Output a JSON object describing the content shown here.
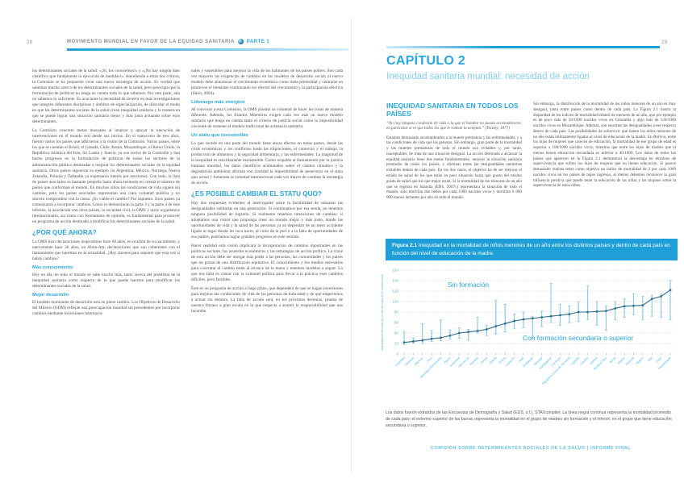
{
  "colors": {
    "accent_blue": "#29a8e0",
    "banner_blue": "#1e9fd8",
    "mean_line": "#2e6e8e",
    "error_bar": "#8fc9e6",
    "grid": "#c9c9c9",
    "tick_label": "#5ab9e8"
  },
  "left_page": {
    "page_number": "28",
    "header": {
      "title": "MOVIMIENTO MUNDIAL EN FAVOR DE LA EQUIDAD SANITARIA",
      "part": "PARTE 1"
    },
    "col1": [
      {
        "type": "p",
        "text": "los determinantes sociales de la salud: «¡Sí, los conocemos!» y «¡No hay ningún dato científico que fundamente la ejecución de medidas!». Atendiendo a estas dos críticas, la Comisión se ha propuesto crear una nueva estrategia de acción. Es verdad que sabemos mucho acerca de los determinantes sociales de la salud, pero preocupa que la formulación de políticas no tenga en cuenta todo lo que sabemos. Por otra parte, aún no sabemos lo suficiente. Es acuciante la necesidad de invertir en más investigaciones que integren diferentes disciplinas y ámbitos de especialización, de dilucidar el modo en que los determinantes sociales de la salud crean inequidad sanitaria y la manera en que se puede lograr una situación sanitaria mejor y más justa actuando sobre esos determinantes."
      },
      {
        "type": "p",
        "text": "La Comisión concretó metas inusuales al inspirar y apoyar la ejecución de intervenciones en el mundo real desde sus inicios. En el transcurso de tres años, fueron varios los países que adhirieron a la visión de la Comisión. Varios países, entre los que se cuentan el Brasil, el Canadá, Chile, Kenia, Mozambique, el Reino Unido, la República Islámica del Irán, Sri Lanka y Suecia, ya son socios de la Comisión y han hecho progresos en la formulación de políticas de todos los sectores de la administración pública destinadas a mejorar los determinantes sociales de la equidad sanitaria. Otros países siguieron su ejemplo (la Argentina, México, Noruega, Nueva Zelandia, Polonia y Tailandia ya expresaron interés por asociarse). Con todo, la lista de países asociados es bastante pequeña hasta ahora teniendo en cuenta el número de países que conforman el mundo. En muchos sitios las condiciones de vida siguen sin cambiar, pero los países asociados representan una clara voluntad política y un sincero compromiso con la causa. ¿Es viable el cambio? Por supuesto. Esos países ya comenzaron a incorporar cambios. Como lo demostrarán la parte 3 y la parte 4 de este informe, la asociación con otros países, la sociedad civil, la OMS y otros organismos internacionales, así como con formadores de opinión, es fundamental para promover un programa de acción destinado a modificar los determinantes sociales de la salud."
      },
      {
        "type": "h1",
        "text": "¿POR QUÉ AHORA?"
      },
      {
        "type": "p",
        "text": "La OMS hizo declaraciones inspiradoras hace 60 años, en ocasión de su nacimiento, y nuevamente hace 30 años, en Alma-Ata; declaraciones que son coherentes con el llamamiento que hacemos en la actualidad. ¿Hay razones para suponer que esta vez sí habrá cambios?"
      },
      {
        "type": "h2",
        "text": "Más conocimiento"
      },
      {
        "type": "p",
        "text": "Hoy en día, en todo el mundo se sabe mucho más, tanto acerca del problema de la inequidad sanitaria como respecto de lo que puede hacerse para modificar los determinantes sociales de la salud."
      },
      {
        "type": "h2",
        "text": "Mejor desarrollo"
      },
      {
        "type": "p",
        "text": "El modelo dominante de desarrollo está en pleno cambio. Los Objetivos de Desarrollo del Milenio (ODM) reflejan una preocupación mundial sin precedentes por incorporar cambios mediante inversiones internacio-"
      }
    ],
    "col2": [
      {
        "type": "p",
        "text": "nales y sostenibles para mejorar la vida de los habitantes de los países pobres. Son cada vez mayores las exigencias de cambios en los modelos de desarrollo social; el nuevo modelo debe abandonar el crecimiento económico como meta primordial y centrarse en promover el bienestar combinando los efectos del crecimiento y la participación efectiva (Stern, 2004)."
      },
      {
        "type": "h2",
        "text": "Liderazgo más enérgico"
      },
      {
        "type": "p",
        "text": "Al convocar a esta Comisión, la OMS plasmó su voluntad de hacer las cosas de manera diferente. Además, los Estados Miembros exigen cada vez más un nuevo modelo sanitario que tenga en cuenta tanto el criterio de justicia social como la imposibilidad creciente de sostener el modelo tradicional de asistencia sanitaria."
      },
      {
        "type": "h2",
        "text": "Un statu quo insostenible"
      },
      {
        "type": "p",
        "text": "Lo que sucede en una parte del mundo tiene ahora efectos en todas partes, desde las crisis económicas y los conflictos hasta las migraciones, el comercio y el trabajo, la producción de alimentos y la seguridad alimentaria, y las enfermedades. La magnitud de la inequidad es sencillamente insostenible. Como respaldo al llamamiento por la justicia humana mundial, los datos científicos acumulados sobre el cambio climático y la degradación ambiental afirman con claridad la imposibilidad de perseverar en el statu quo actual y fomentan la voluntad internacional cada vez mayor de cambiar la estrategia de acción."
      },
      {
        "type": "h1",
        "text": "¿ES POSIBLE CAMBIAR EL STATU QUO?"
      },
      {
        "type": "p",
        "text": "Hay dos respuestas evidentes al interrogante sobre la factibilidad de subsanar las desigualdades sanitarias en una generación. Si continuamos por esa senda, no tenemos ninguna posibilidad de lograrlo. Si realmente tenemos intenciones de cambiar, si adoptamos una visión que proponga crear un mundo mejor y más justo, donde las oportunidades de vida y la salud de las personas ya no dependan de un mero accidente ligado al lugar donde les toca nacer, al color de la piel o a la falta de oportunidades de sus padres, podríamos lograr grandes progresos en este sentido."
      },
      {
        "type": "p",
        "text": "Hacer realidad esta visión implicará la incorporación de cambios importantes en las políticas sociales, los acuerdos económicos y las estrategias de acción política. La clave de esta acción debe ser otorgar más poder a las personas, las comunidades y los países que no gozan de una distribución equitativa. El conocimiento y los medios necesarios para concretar el cambio están al alcance de la mano y tenemos modelos a seguir. Lo que nos falta es contar con la voluntad política para llevar a la práctica esos cambios difíciles, pero factibles."
      },
      {
        "type": "p",
        "text": "Éste es un programa de acción a largo plazo, que dependerá de que se hagan inversiones para mejorar las condiciones de vida de las personas de toda edad y de que empecemos a actuar sin demora. La falta de acción será, en los próximos decenios, prueba de nuestro fracaso a gran escala en lo que respecta a asumir la responsabilidad que nos incumbe."
      }
    ]
  },
  "right_page": {
    "page_number": "29",
    "chapter": "CAPÍTULO 2",
    "subtitle": "Inequidad sanitaria mundial: necesidad de acción",
    "col1": [
      {
        "type": "h1",
        "text": "INEQUIDAD SANITARIA EN TODOS LOS PAÍSES"
      },
      {
        "type": "quote",
        "text": "“No hay ninguna condición de vida a la que el hombre no pueda acostumbrarse, en particular si ve que todos los que le rodean la aceptan.” (Tolstoy, 1877)"
      },
      {
        "type": "p",
        "text": "Estamos demasiado acostumbrados a la muerte prematura y las enfermedades, y a las condiciones de vida que las generan. Sin embargo, gran parte de la mortalidad y las muertes prematuras de todo el mundo son evitables y, por tanto, inaceptables. Se trata de una situación desigual. La acción destinada a alcanzar la equidad sanitaria tiene dos metas fundamentales: mejorar la situación sanitaria promedio de todos los países, y eliminar todas las desigualdades sanitarias evitables dentro de cada país. En los dos casos, el objetivo ha de ser mejorar el estado de salud de los que están en peor situación hasta que gocen del mismo grado de salud que los que mejor están. Si la mortalidad de los menores de un año que se registra en Islandia (EDS, 2007c) representara la situación de todo el mundo, sólo morirían dos bebés por cada 1000 nacidos vivos y morirían 6 600 000 menos lactantes por año en todo el mundo."
      }
    ],
    "col2": [
      {
        "type": "p",
        "text": "Sin embargo, la distribución de la mortalidad de los niños menores de un año es muy desigual, tanto entre países como dentro de cada país. La Figura 2.1 ilustra la disparidad de los índices de mortalidad infantil de menores de un año, que por ejemplo es de poco más de 20/1000 nacidos vivos en Colombia y algo más de 120/1000 nacidos vivos en Mozambique. Además, son enormes las desigualdades a ese respecto dentro de cada país. Las posibilidades de sobrevivir que tienen los niños menores de un año están íntimamente ligadas al nivel de educación de la madre. En Bolivia, entre los hijos de mujeres que carecen de educación, la mortalidad de ese grupo de edad es superior a 100/1000 nacidos vivos, mientras que entre los hijos de madres que al menos tienen educación secundaria es inferior a 40/1000. Los datos de todos los países que aparecen en la Figura 2.1 demuestran la desventaja en términos de supervivencia que sufren los hijos de mujeres que no tienen educación. Si parece demasiado realista tener como objetivo un índice de mortalidad de 2 por cada 1000 nacidos vivos en los países de bajos ingresos, al menos debemos reconocer la gran influencia positiva que puede tener la educación de las niñas y las mujeres sobre la supervivencia de estos niños."
      }
    ],
    "figure": {
      "label": "Figura 2.1",
      "caption": " Inequidad en la mortalidad de niños menores de un año entre los distintos países y dentro de cada país en función del nivel de educación de la madre.",
      "note": "Los datos fueron extraídos de las Encuestas de Demografía y Salud (EDS, s.f.), STATcompiler. La línea negra continua representa la mortalidad promedio de cada país; el extremo superior de las barras representa la mortalidad en el grupo de madres sin formación y el inferior, en el grupo que tiene educación secundaria o superior."
    },
    "footer": "COMISIÓN SOBRE DETERMINANTES SOCIALES DE LA SALUD  |  INFORME FINAL"
  },
  "chart_data": {
    "type": "line",
    "title": "Inequidad en la mortalidad de niños menores de un año entre los distintos países y dentro de cada país en función del nivel de educación de la madre",
    "ylabel": "Mortalidad de menores de un año por cada 1000 nacidos vivos",
    "xlabel": "",
    "ylim": [
      0,
      160
    ],
    "ytick_step": 20,
    "grid": "dashed-horizontal",
    "legend_position": "annotations-inside-plot",
    "annotations": [
      "Sin formación",
      "Con formación secundaria o superior"
    ],
    "categories": [
      "Colombia",
      "Jordania",
      "Filipinas",
      "Perú",
      "República Dominicana",
      "Egipto",
      "Indonesia",
      "Marruecos",
      "Namibia",
      "Kenya",
      "Bolivia",
      "Ghana",
      "Camerún",
      "Haití",
      "Zimbabwe",
      "Senegal",
      "Madagascar",
      "Camboya",
      "República Unida de Tanzanía",
      "Uganda",
      "Lesotho",
      "Zambia",
      "Burkina Faso",
      "Benin",
      "Malawi",
      "Rwanda",
      "Nigeria",
      "Malí",
      "Chad",
      "Mozambique"
    ],
    "series": [
      {
        "name": "Sin formación (extremo superior de la barra)",
        "values": [
          43,
          30,
          58,
          45,
          65,
          46,
          50,
          47,
          70,
          55,
          102,
          95,
          76,
          80,
          72,
          82,
          135,
          95,
          92,
          100,
          130,
          100,
          92,
          100,
          105,
          115,
          110,
          112,
          115,
          140
        ]
      },
      {
        "name": "Mortalidad promedio del país (línea continua)",
        "values": [
          22,
          24,
          26,
          29,
          31,
          35,
          40,
          42,
          44,
          47,
          53,
          58,
          63,
          66,
          68,
          70,
          72,
          74,
          76,
          80,
          80,
          81,
          82,
          87,
          91,
          92,
          93,
          105,
          110,
          122
        ]
      },
      {
        "name": "Con formación secundaria o superior (extremo inferior de la barra)",
        "values": [
          18,
          21,
          20,
          24,
          25,
          28,
          30,
          26,
          40,
          35,
          38,
          42,
          48,
          50,
          30,
          52,
          60,
          55,
          60,
          62,
          65,
          55,
          45,
          65,
          70,
          75,
          65,
          72,
          70,
          65
        ]
      }
    ],
    "source": "Encuestas de Demografía y Salud (EDS, s.f.), STATcompiler"
  }
}
